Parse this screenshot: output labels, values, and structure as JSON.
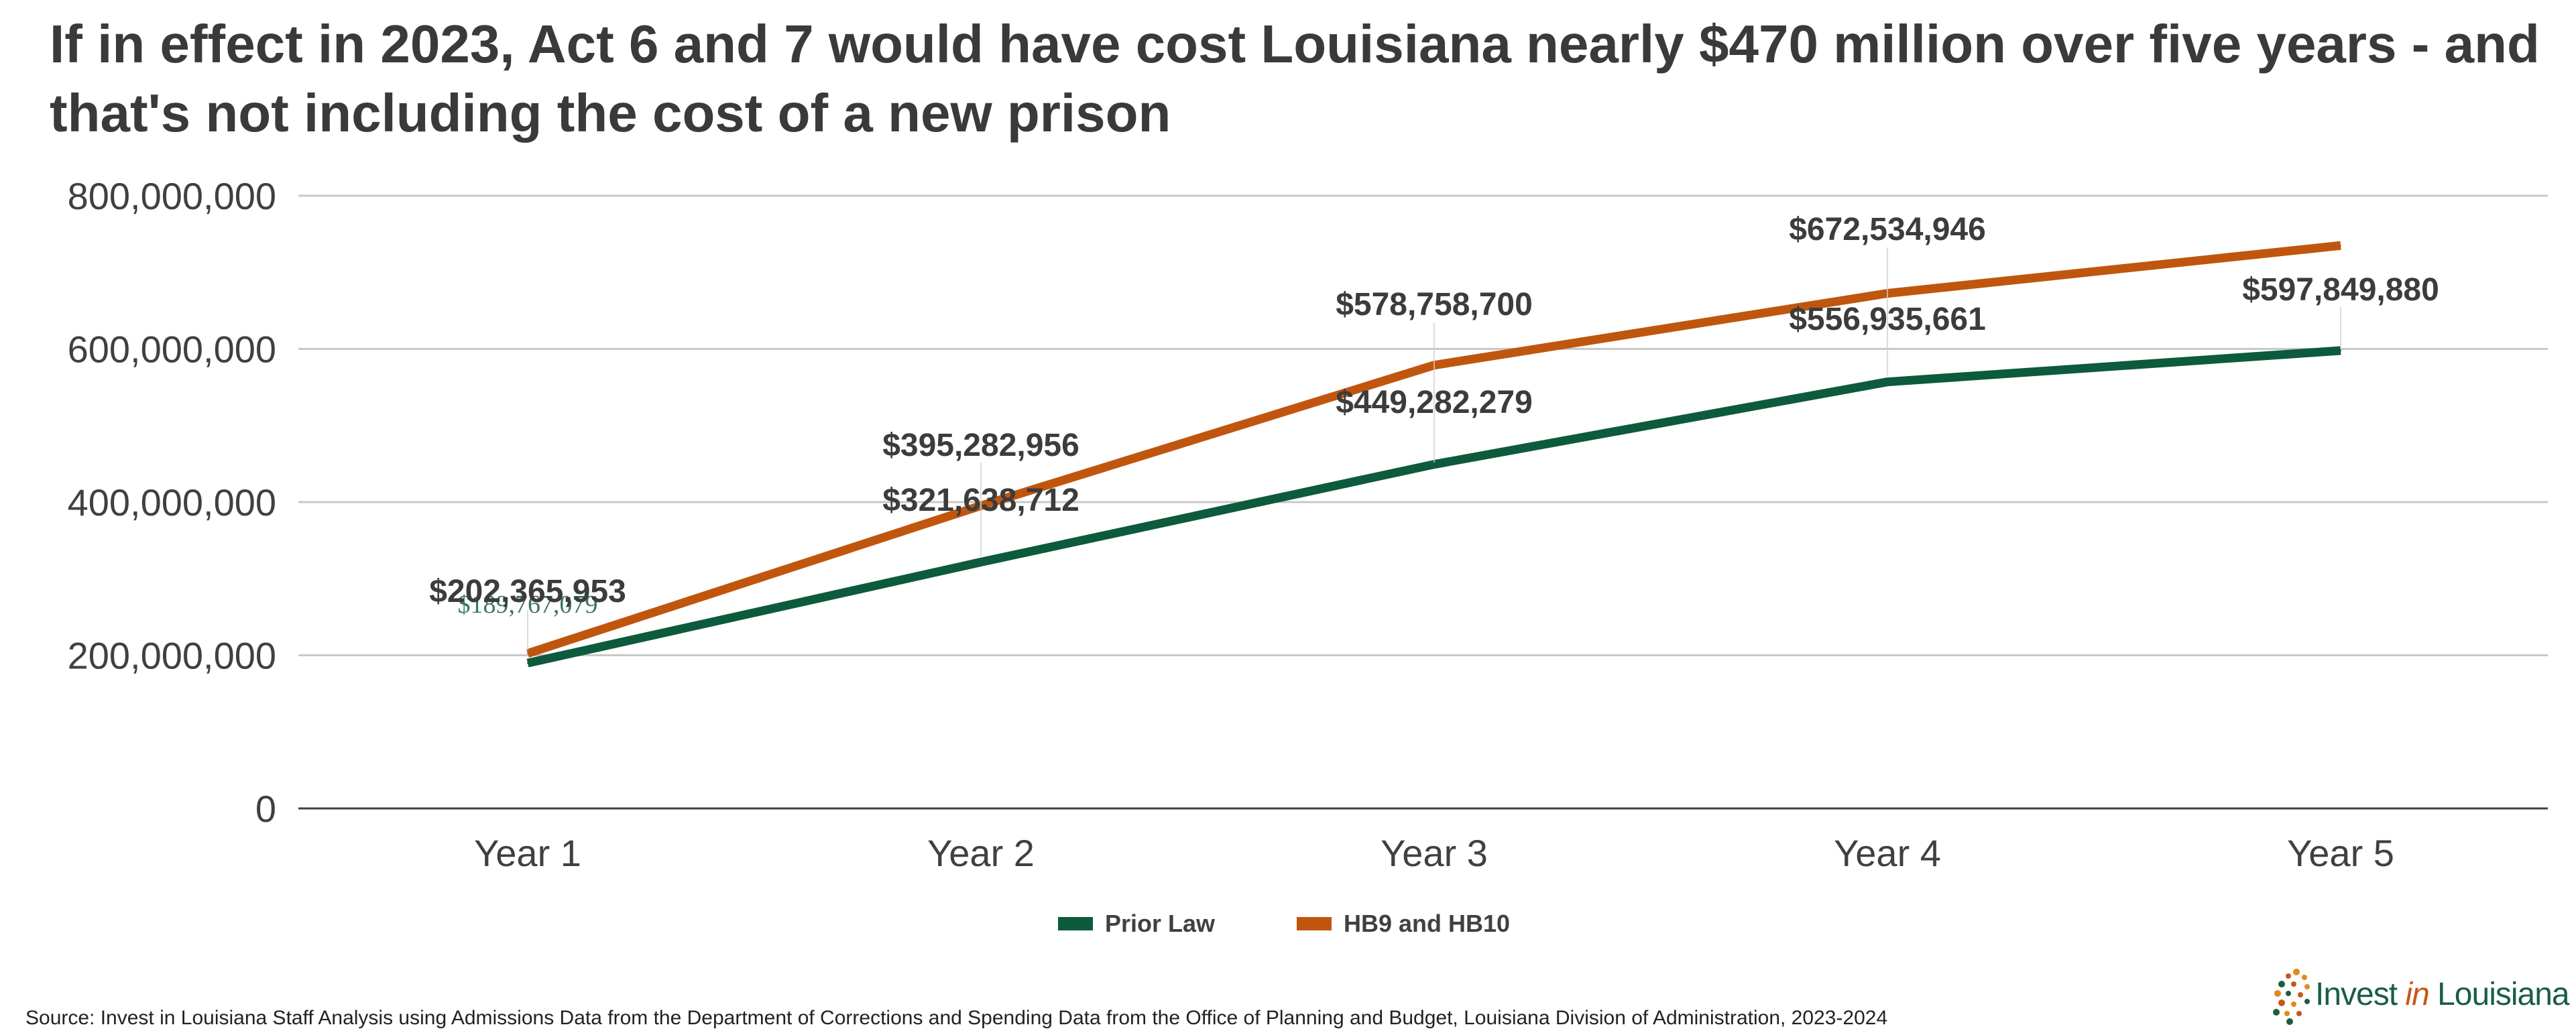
{
  "chart_data": {
    "type": "line",
    "title": "If in effect in 2023, Act 6 and 7 would have cost Louisiana nearly $470 million over five years - and that's not including the cost of a new prison",
    "categories": [
      "Year 1",
      "Year 2",
      "Year 3",
      "Year 4",
      "Year 5"
    ],
    "ylim": [
      0,
      800000000
    ],
    "yticks": [
      0,
      200000000,
      400000000,
      600000000,
      800000000
    ],
    "ytick_labels": [
      "0",
      "200,000,000",
      "400,000,000",
      "600,000,000",
      "800,000,000"
    ],
    "grid": true,
    "legend_position": "bottom",
    "series": [
      {
        "name": "Prior Law",
        "color": "#0d5a3c",
        "values": [
          189767079,
          321638712,
          449282279,
          556935661,
          597849880
        ],
        "labels": [
          "$189,767,079",
          "$321,638,712",
          "$449,282,279",
          "$556,935,661",
          "$597,849,880"
        ]
      },
      {
        "name": "HB9 and HB10",
        "color": "#c0560e",
        "values": [
          202365953,
          395282956,
          578758700,
          672534946,
          735000000
        ],
        "labels": [
          "$202,365,953",
          "$395,282,956",
          "$578,758,700",
          "$672,534,946",
          ""
        ]
      }
    ]
  },
  "source": "Source: Invest in Louisiana Staff Analysis using Admissions Data from the Department of Corrections and Spending Data from the Office of Planning and Budget, Louisiana Division of Administration, 2023-2024",
  "logo": {
    "word1": "Invest",
    "word2": "in",
    "word3": "Louisiana",
    "dot_colors": [
      "#e08a1e",
      "#1a5e42",
      "#c8561a"
    ]
  }
}
